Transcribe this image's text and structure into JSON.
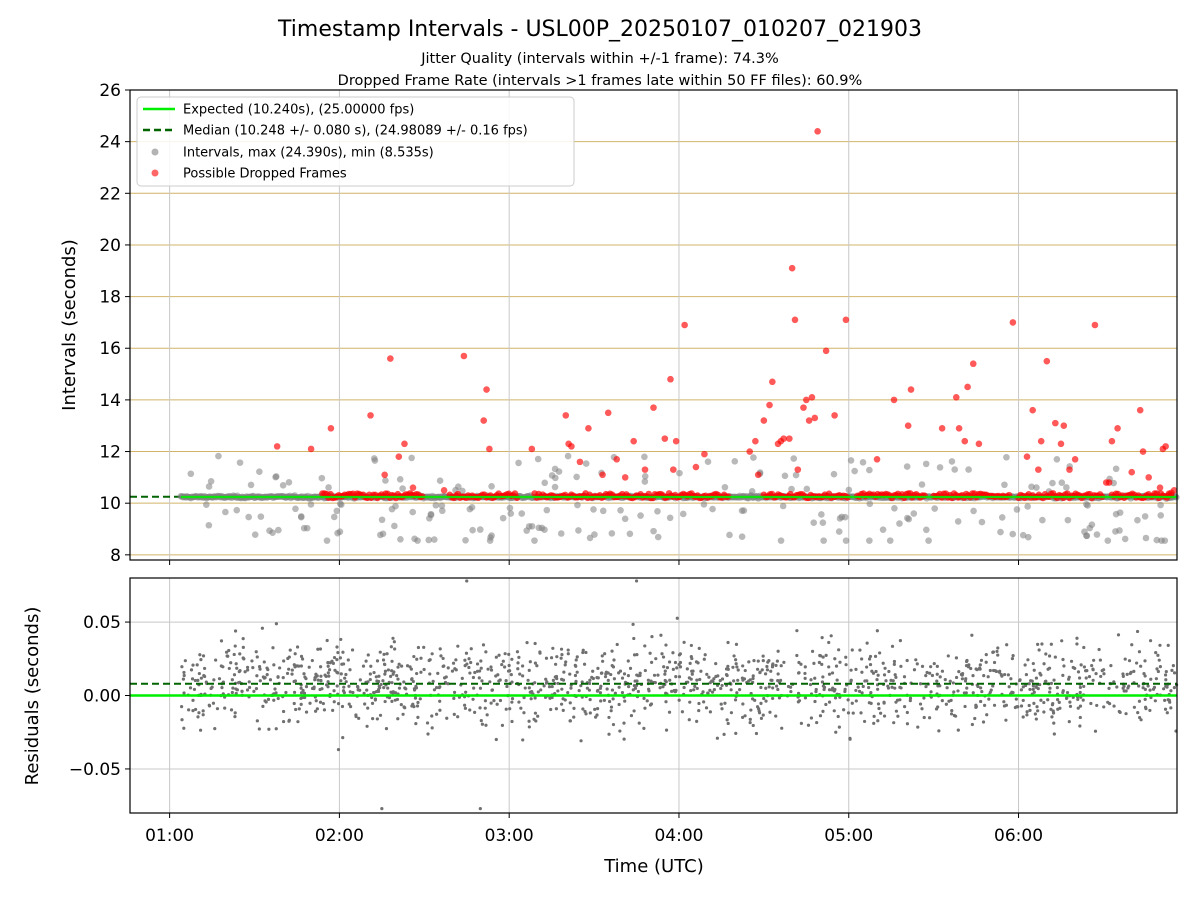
{
  "title": "Timestamp Intervals - USL00P_20250107_010207_021903",
  "subtitle_1": "Jitter Quality (intervals within +/-1 frame): 74.3%",
  "subtitle_2": "Dropped Frame Rate (intervals >1 frames late within 50 FF files): 60.9%",
  "colors": {
    "expected": "#00ee00",
    "median": "#006400",
    "intervals": "#808080",
    "dropped": "#ff0000",
    "gridline_h": "#d2b469",
    "gridline_v": "#c8c8c8",
    "residual_points": "#707070"
  },
  "chart_data": [
    {
      "type": "scatter",
      "xlabel": "",
      "ylabel": "Intervals (seconds)",
      "xlim": [
        "00:46",
        "06:56"
      ],
      "ylim": [
        7.8,
        26
      ],
      "yticks": [
        8,
        10,
        12,
        14,
        16,
        18,
        20,
        22,
        24,
        26
      ],
      "grid": "on",
      "legend_position": "top-left",
      "lines": [
        {
          "name": "Expected (10.240s), (25.00000 fps)",
          "y": 10.24,
          "style": "solid",
          "x_range": [
            "01:04",
            "06:56"
          ]
        },
        {
          "name": "Median (10.248 +/- 0.080 s), (24.98089 +/- 0.16 fps)",
          "y": 10.248,
          "style": "dashed",
          "x_range": [
            "00:46",
            "06:56"
          ]
        }
      ],
      "series": [
        {
          "name": "Intervals, max (24.390s), min (8.535s)",
          "max": 24.39,
          "min": 8.535
        },
        {
          "name": "Possible Dropped Frames",
          "x": [
            "01:38",
            "01:50",
            "01:57",
            "02:11",
            "02:16",
            "02:18",
            "02:21",
            "02:23",
            "02:26",
            "02:37",
            "02:44",
            "02:51",
            "02:52",
            "02:53",
            "03:08",
            "03:20",
            "03:21",
            "03:22",
            "03:25",
            "03:28",
            "03:33",
            "03:35",
            "03:38",
            "03:41",
            "03:44",
            "03:48",
            "03:51",
            "03:55",
            "03:57",
            "03:58",
            "03:59",
            "04:02",
            "04:06",
            "04:09",
            "04:25",
            "04:27",
            "04:28",
            "04:30",
            "04:32",
            "04:33",
            "04:35",
            "04:36",
            "04:37",
            "04:39",
            "04:40",
            "04:41",
            "04:42",
            "04:44",
            "04:45",
            "04:46",
            "04:47",
            "04:48",
            "04:49",
            "04:52",
            "04:55",
            "04:59",
            "05:10",
            "05:16",
            "05:21",
            "05:22",
            "05:33",
            "05:38",
            "05:39",
            "05:41",
            "05:42",
            "05:44",
            "05:46",
            "05:58",
            "06:03",
            "06:05",
            "06:07",
            "06:08",
            "06:10",
            "06:13",
            "06:15",
            "06:16",
            "06:18",
            "06:20",
            "06:27",
            "06:31",
            "06:32",
            "06:33",
            "06:35",
            "06:40",
            "06:43",
            "06:44",
            "06:46",
            "06:50",
            "06:51",
            "06:52",
            "06:53",
            "06:54",
            "06:55"
          ],
          "y": [
            12.2,
            12.1,
            12.9,
            13.4,
            11.1,
            15.6,
            11.8,
            12.3,
            10.6,
            10.5,
            15.7,
            13.2,
            14.4,
            12.1,
            12.1,
            13.4,
            12.3,
            12.2,
            11.6,
            12.9,
            11.1,
            13.5,
            11.7,
            11.0,
            12.4,
            11.3,
            13.7,
            12.5,
            14.8,
            11.3,
            12.4,
            16.9,
            11.4,
            11.9,
            12.0,
            12.4,
            11.1,
            13.2,
            13.8,
            14.7,
            12.3,
            12.4,
            12.5,
            12.5,
            19.1,
            17.1,
            11.3,
            13.7,
            14.0,
            13.2,
            14.1,
            13.3,
            24.4,
            15.9,
            13.4,
            17.1,
            11.7,
            14.0,
            13.0,
            14.4,
            12.9,
            14.1,
            12.9,
            12.4,
            14.5,
            15.4,
            12.3,
            17.0,
            11.8,
            13.6,
            11.3,
            12.4,
            15.5,
            13.1,
            12.3,
            13.0,
            11.3,
            11.7,
            16.9,
            10.8,
            10.8,
            12.4,
            12.9,
            11.2,
            13.6,
            12.0,
            11.0,
            10.6,
            12.1,
            12.2,
            10.3,
            10.4,
            10.5
          ]
        }
      ],
      "dense_band": {
        "from": "01:04",
        "to": "06:56",
        "center": 10.24
      }
    },
    {
      "type": "scatter",
      "xlabel": "Time (UTC)",
      "ylabel": "Residuals (seconds)",
      "xlim": [
        "00:46",
        "06:56"
      ],
      "ylim": [
        -0.08,
        0.08
      ],
      "yticks": [
        -0.05,
        0.0,
        0.05
      ],
      "ytick_labels": [
        "−0.05",
        "0.00",
        "0.05"
      ],
      "xticks": [
        "01:00",
        "02:00",
        "03:00",
        "04:00",
        "05:00",
        "06:00"
      ],
      "grid": "on",
      "lines": [
        {
          "name": "Expected",
          "y": 0.0,
          "style": "solid"
        },
        {
          "name": "Median",
          "y": 0.008,
          "style": "dashed"
        }
      ],
      "series": [
        {
          "name": "Residuals",
          "x_range": [
            "01:04",
            "06:56"
          ],
          "spread": 0.02,
          "extremes": [
            0.078,
            -0.077
          ]
        }
      ]
    }
  ]
}
